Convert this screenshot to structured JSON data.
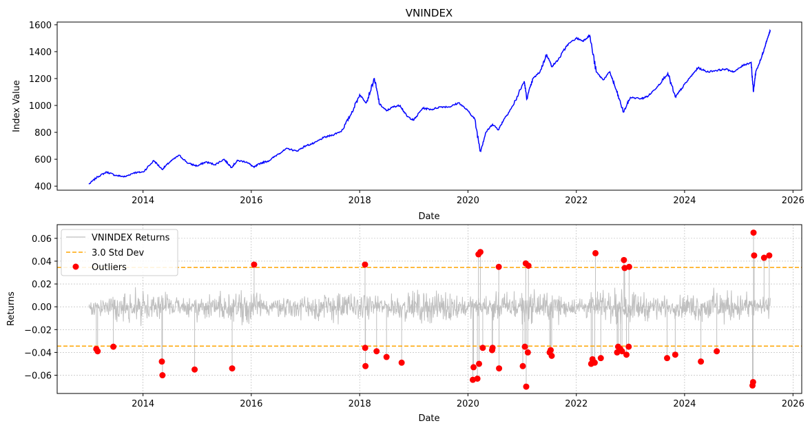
{
  "chart_data": [
    {
      "type": "line",
      "title": "VNINDEX",
      "xlabel": "Date",
      "ylabel": "Index Value",
      "xlim": [
        "2012-06-01",
        "2026-03-01"
      ],
      "ylim": [
        370,
        1620
      ],
      "x_ticks": [
        "2014",
        "2016",
        "2018",
        "2020",
        "2022",
        "2024",
        "2026"
      ],
      "y_ticks": [
        400,
        600,
        800,
        1000,
        1200,
        1400,
        1600
      ],
      "grid": false,
      "color": "#0000ff",
      "series": [
        {
          "x": [
            "2013-01-01",
            "2013-03-01",
            "2013-05-01",
            "2013-07-01",
            "2013-09-01",
            "2013-11-01",
            "2014-01-01",
            "2014-03-15",
            "2014-05-10",
            "2014-07-01",
            "2014-09-01",
            "2014-11-01",
            "2015-01-01",
            "2015-03-01",
            "2015-05-01",
            "2015-07-01",
            "2015-08-20",
            "2015-10-01",
            "2015-12-01",
            "2016-01-20",
            "2016-03-01",
            "2016-05-01",
            "2016-07-01",
            "2016-09-01",
            "2016-11-01",
            "2017-01-01",
            "2017-03-01",
            "2017-05-01",
            "2017-07-01",
            "2017-09-01",
            "2017-11-01",
            "2018-01-01",
            "2018-02-15",
            "2018-04-10",
            "2018-05-15",
            "2018-07-01",
            "2018-08-15",
            "2018-10-01",
            "2018-11-15",
            "2019-01-01",
            "2019-03-01",
            "2019-05-01",
            "2019-07-01",
            "2019-09-01",
            "2019-11-01",
            "2020-01-01",
            "2020-02-15",
            "2020-03-25",
            "2020-05-01",
            "2020-06-15",
            "2020-07-25",
            "2020-09-01",
            "2020-11-01",
            "2021-01-15",
            "2021-02-01",
            "2021-03-15",
            "2021-05-01",
            "2021-06-15",
            "2021-07-20",
            "2021-09-01",
            "2021-11-01",
            "2022-01-01",
            "2022-02-15",
            "2022-04-01",
            "2022-05-15",
            "2022-07-01",
            "2022-08-15",
            "2022-10-01",
            "2022-11-15",
            "2023-01-01",
            "2023-03-15",
            "2023-05-01",
            "2023-07-01",
            "2023-09-10",
            "2023-10-30",
            "2023-12-01",
            "2024-02-01",
            "2024-04-01",
            "2024-06-01",
            "2024-08-01",
            "2024-10-01",
            "2024-12-01",
            "2025-02-01",
            "2025-03-25",
            "2025-04-09",
            "2025-04-25",
            "2025-06-01",
            "2025-07-01",
            "2025-07-20",
            "2025-08-01"
          ],
          "y": [
            415,
            470,
            505,
            480,
            470,
            500,
            505,
            590,
            525,
            580,
            630,
            570,
            550,
            580,
            560,
            600,
            540,
            590,
            580,
            540,
            570,
            590,
            640,
            680,
            660,
            700,
            720,
            760,
            780,
            810,
            930,
            1080,
            1020,
            1200,
            1010,
            960,
            990,
            1000,
            920,
            890,
            980,
            970,
            990,
            990,
            1020,
            960,
            900,
            660,
            800,
            860,
            820,
            900,
            1000,
            1180,
            1050,
            1200,
            1250,
            1380,
            1290,
            1340,
            1450,
            1500,
            1480,
            1520,
            1250,
            1190,
            1250,
            1100,
            950,
            1060,
            1050,
            1070,
            1140,
            1240,
            1060,
            1110,
            1200,
            1280,
            1250,
            1260,
            1270,
            1250,
            1300,
            1320,
            1100,
            1250,
            1350,
            1460,
            1520,
            1560
          ]
        }
      ]
    },
    {
      "type": "line",
      "xlabel": "Date",
      "ylabel": "Returns",
      "xlim": [
        "2012-06-01",
        "2026-03-01"
      ],
      "ylim": [
        -0.076,
        0.072
      ],
      "x_ticks": [
        "2014",
        "2016",
        "2018",
        "2020",
        "2022",
        "2024",
        "2026"
      ],
      "y_ticks": [
        "0.06",
        "0.04",
        "0.02",
        "0.00",
        "−0.02",
        "−0.04",
        "−0.06"
      ],
      "grid": true,
      "legend": "top-left",
      "returns_color": "#bfbfbf",
      "threshold_color": "#ffa500",
      "outlier_color": "#ff0000",
      "series": [
        {
          "name": "VNINDEX Returns",
          "style": "line",
          "amplitude": 0.02
        },
        {
          "name": "3.0 Std Dev",
          "style": "dashed",
          "values": [
            0.0345,
            -0.0345
          ]
        },
        {
          "name": "Outliers",
          "style": "markers",
          "points": [
            [
              "2013-02-20",
              -0.037
            ],
            [
              "2013-03-01",
              -0.039
            ],
            [
              "2013-06-15",
              -0.035
            ],
            [
              "2014-05-08",
              -0.048
            ],
            [
              "2014-05-12",
              -0.06
            ],
            [
              "2014-12-15",
              -0.055
            ],
            [
              "2015-08-25",
              -0.054
            ],
            [
              "2016-01-20",
              0.037
            ],
            [
              "2018-02-06",
              0.037
            ],
            [
              "2018-02-07",
              -0.036
            ],
            [
              "2018-02-09",
              -0.052
            ],
            [
              "2018-04-25",
              -0.039
            ],
            [
              "2018-07-01",
              -0.044
            ],
            [
              "2018-10-11",
              -0.049
            ],
            [
              "2020-02-03",
              -0.064
            ],
            [
              "2020-02-08",
              -0.053
            ],
            [
              "2020-03-05",
              -0.063
            ],
            [
              "2020-03-12",
              0.046
            ],
            [
              "2020-03-16",
              -0.05
            ],
            [
              "2020-03-25",
              0.048
            ],
            [
              "2020-04-10",
              -0.036
            ],
            [
              "2020-06-12",
              -0.038
            ],
            [
              "2020-06-15",
              -0.036
            ],
            [
              "2020-07-27",
              0.035
            ],
            [
              "2020-07-29",
              -0.054
            ],
            [
              "2021-01-05",
              -0.052
            ],
            [
              "2021-01-19",
              -0.035
            ],
            [
              "2021-01-28",
              -0.07
            ],
            [
              "2021-01-25",
              0.038
            ],
            [
              "2021-02-12",
              0.036
            ],
            [
              "2021-02-08",
              -0.04
            ],
            [
              "2021-07-05",
              -0.04
            ],
            [
              "2021-07-12",
              -0.038
            ],
            [
              "2021-07-19",
              -0.043
            ],
            [
              "2022-04-11",
              -0.05
            ],
            [
              "2022-04-20",
              -0.046
            ],
            [
              "2022-05-05",
              -0.049
            ],
            [
              "2022-05-10",
              0.047
            ],
            [
              "2022-06-15",
              -0.045
            ],
            [
              "2022-10-03",
              -0.04
            ],
            [
              "2022-10-10",
              -0.035
            ],
            [
              "2022-10-25",
              -0.037
            ],
            [
              "2022-11-05",
              -0.039
            ],
            [
              "2022-11-18",
              0.041
            ],
            [
              "2022-11-23",
              0.034
            ],
            [
              "2022-12-05",
              -0.042
            ],
            [
              "2022-12-20",
              -0.035
            ],
            [
              "2022-12-23",
              0.035
            ],
            [
              "2023-09-05",
              -0.045
            ],
            [
              "2023-10-30",
              -0.042
            ],
            [
              "2024-04-20",
              -0.048
            ],
            [
              "2024-08-05",
              -0.039
            ],
            [
              "2025-04-03",
              -0.069
            ],
            [
              "2025-04-07",
              -0.066
            ],
            [
              "2025-04-10",
              0.065
            ],
            [
              "2025-04-14",
              0.045
            ],
            [
              "2025-06-20",
              0.043
            ],
            [
              "2025-07-25",
              0.045
            ]
          ]
        }
      ]
    }
  ]
}
